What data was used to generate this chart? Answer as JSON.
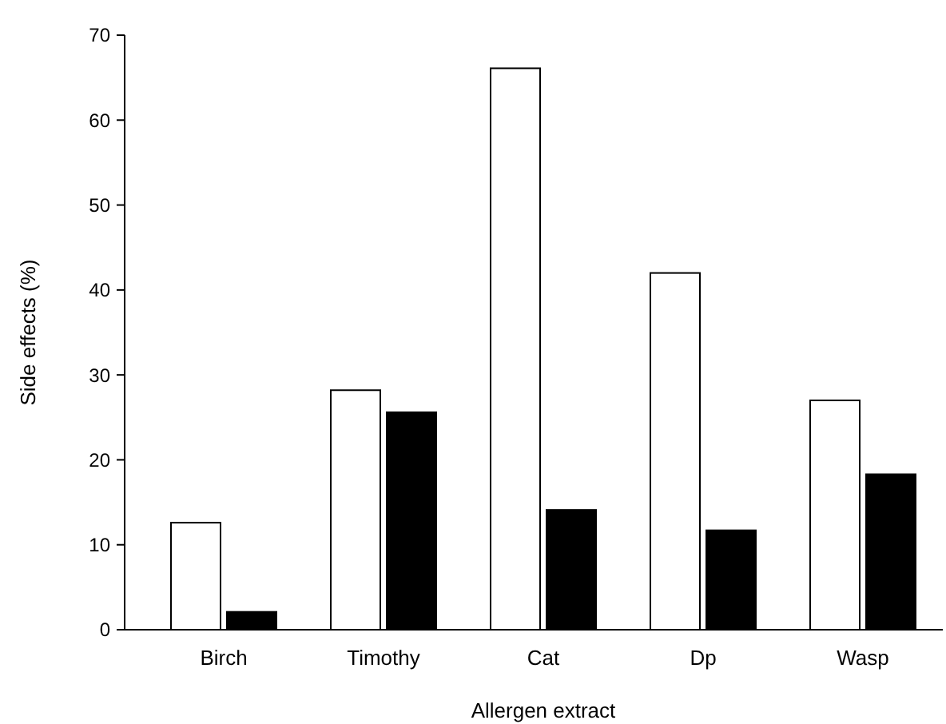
{
  "chart_data": {
    "type": "bar",
    "xlabel": "Allergen extract",
    "ylabel": "Side effects (%)",
    "categories": [
      "Birch",
      "Timothy",
      "Cat",
      "Dp",
      "Wasp"
    ],
    "series": [
      {
        "color": "#ffffff",
        "values": [
          12.6,
          28.2,
          66.1,
          42,
          27
        ]
      },
      {
        "color": "#000000",
        "values": [
          2.1,
          25.6,
          14.1,
          11.7,
          18.3
        ]
      }
    ],
    "ylim": [
      0,
      70
    ],
    "yticks": [
      0,
      10,
      20,
      30,
      40,
      50,
      60,
      70
    ],
    "grid": false
  }
}
